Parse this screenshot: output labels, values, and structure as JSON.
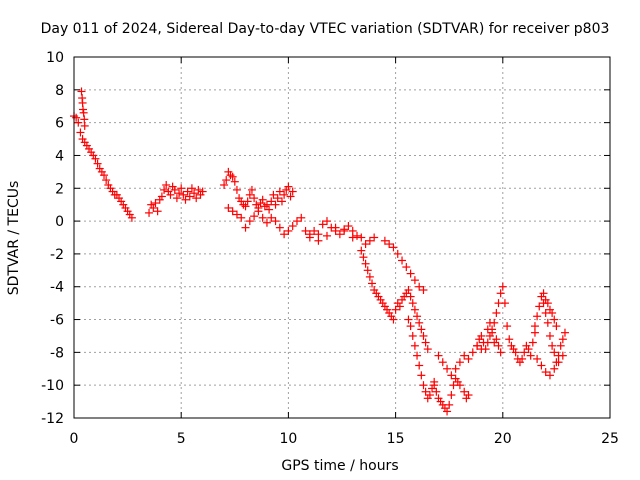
{
  "chart_data": {
    "type": "scatter",
    "title": "Day 011 of 2024, Sidereal Day-to-day VTEC variation (SDTVAR) for receiver p803",
    "xlabel": "GPS time / hours",
    "ylabel": "SDTVAR / TECUs",
    "xlim": [
      0,
      25
    ],
    "ylim": [
      -12,
      10
    ],
    "xticks": [
      0,
      5,
      10,
      15,
      20,
      25
    ],
    "yticks": [
      -12,
      -10,
      -8,
      -6,
      -4,
      -2,
      0,
      2,
      4,
      6,
      8,
      10
    ],
    "grid": true,
    "marker": "+",
    "color": "#ff0000",
    "series": [
      {
        "name": "SDTVAR",
        "x": [
          0.0,
          0.1,
          0.2,
          0.3,
          0.4,
          0.5,
          0.6,
          0.7,
          0.8,
          0.9,
          1.0,
          1.1,
          1.2,
          1.3,
          1.4,
          1.5,
          1.6,
          1.7,
          1.8,
          1.9,
          2.0,
          2.1,
          2.2,
          2.3,
          2.4,
          2.5,
          2.6,
          2.7,
          0.35,
          0.38,
          0.4,
          0.42,
          0.45,
          0.48,
          0.5,
          3.5,
          3.6,
          3.7,
          3.8,
          3.9,
          4.0,
          4.1,
          4.2,
          4.3,
          4.4,
          4.5,
          4.6,
          4.7,
          4.8,
          4.9,
          5.0,
          5.1,
          5.2,
          5.3,
          5.4,
          5.5,
          5.6,
          5.7,
          5.8,
          5.9,
          6.0,
          7.0,
          7.1,
          7.2,
          7.3,
          7.4,
          7.5,
          7.6,
          7.7,
          7.8,
          7.9,
          8.0,
          8.1,
          8.2,
          8.3,
          8.4,
          8.5,
          8.6,
          8.7,
          8.8,
          8.9,
          9.0,
          9.1,
          9.2,
          9.3,
          9.4,
          9.5,
          9.6,
          9.7,
          9.8,
          9.9,
          10.0,
          10.1,
          10.2,
          7.2,
          7.4,
          7.6,
          7.8,
          8.0,
          8.2,
          8.4,
          8.6,
          8.8,
          9.0,
          9.2,
          9.4,
          9.6,
          9.8,
          10.0,
          10.2,
          10.4,
          10.6,
          10.8,
          11.0,
          11.2,
          11.4,
          11.6,
          11.8,
          12.0,
          12.2,
          12.4,
          12.6,
          12.8,
          13.0,
          13.2,
          13.4,
          13.6,
          13.8,
          14.0,
          11.0,
          11.4,
          11.8,
          12.2,
          12.6,
          13.0,
          13.4,
          13.5,
          13.6,
          13.7,
          13.8,
          13.9,
          14.0,
          14.1,
          14.2,
          14.3,
          14.4,
          14.5,
          14.6,
          14.7,
          14.8,
          14.9,
          15.0,
          15.1,
          15.2,
          15.3,
          15.4,
          15.5,
          15.6,
          15.7,
          15.8,
          15.9,
          16.0,
          16.1,
          16.2,
          16.3,
          16.4,
          16.5,
          14.5,
          14.7,
          14.9,
          15.1,
          15.3,
          15.5,
          15.7,
          15.9,
          16.1,
          16.3,
          15.6,
          15.7,
          15.8,
          15.9,
          16.0,
          16.1,
          16.2,
          16.3,
          16.4,
          16.5,
          16.6,
          16.7,
          16.8,
          16.8,
          16.9,
          17.0,
          17.1,
          17.2,
          17.3,
          17.4,
          17.5,
          17.6,
          17.7,
          17.8,
          17.9,
          18.0,
          17.0,
          17.2,
          17.4,
          17.6,
          17.8,
          18.0,
          18.2,
          18.4,
          18.6,
          18.8,
          19.0,
          18.2,
          18.3,
          18.4,
          18.8,
          18.9,
          19.0,
          19.1,
          19.2,
          19.3,
          19.4,
          19.5,
          19.6,
          19.7,
          19.8,
          19.9,
          20.0,
          20.1,
          20.2,
          20.3,
          20.4,
          20.5,
          20.6,
          20.7,
          20.8,
          20.9,
          21.0,
          21.1,
          21.2,
          21.3,
          21.4,
          21.5,
          19.3,
          19.4,
          19.5,
          19.6,
          19.7,
          19.8,
          19.9,
          21.5,
          21.6,
          21.7,
          21.8,
          21.9,
          22.0,
          22.1,
          22.2,
          22.3,
          22.4,
          22.5,
          22.6,
          22.7,
          22.8,
          22.9,
          21.6,
          21.8,
          22.0,
          22.2,
          22.4,
          22.6,
          22.8,
          21.9,
          22.0,
          22.1,
          22.2,
          22.3,
          22.4,
          22.5
        ],
        "y": [
          6.4,
          6.3,
          6.0,
          5.4,
          5.0,
          4.8,
          4.6,
          4.4,
          4.2,
          4.0,
          3.8,
          3.5,
          3.2,
          3.0,
          2.8,
          2.5,
          2.2,
          2.0,
          1.8,
          1.6,
          1.6,
          1.4,
          1.2,
          1.0,
          0.8,
          0.6,
          0.4,
          0.2,
          7.9,
          7.5,
          7.2,
          6.8,
          6.6,
          6.2,
          5.8,
          0.5,
          1.0,
          0.8,
          1.1,
          0.6,
          1.3,
          1.5,
          1.9,
          2.2,
          1.8,
          1.6,
          2.1,
          1.9,
          1.4,
          1.7,
          2.0,
          1.6,
          1.3,
          1.8,
          1.5,
          2.0,
          1.7,
          1.4,
          1.9,
          1.6,
          1.8,
          2.2,
          2.5,
          3.0,
          2.8,
          2.7,
          2.4,
          1.9,
          1.4,
          1.2,
          1.0,
          0.9,
          1.2,
          1.6,
          1.9,
          1.4,
          1.0,
          0.8,
          1.1,
          1.3,
          0.9,
          1.0,
          0.7,
          1.2,
          1.6,
          1.0,
          1.4,
          1.8,
          1.2,
          1.6,
          1.9,
          2.1,
          1.5,
          1.8,
          0.8,
          0.6,
          0.4,
          0.2,
          -0.4,
          0.0,
          0.3,
          0.6,
          0.2,
          -0.1,
          0.2,
          0.0,
          -0.4,
          -0.8,
          -0.6,
          -0.3,
          0.0,
          0.2,
          -0.6,
          -1.0,
          -0.6,
          -0.8,
          -0.2,
          0.0,
          -0.4,
          -0.6,
          -0.8,
          -0.5,
          -0.3,
          -0.6,
          -0.9,
          -1.0,
          -1.4,
          -1.2,
          -1.0,
          -0.8,
          -1.2,
          -0.9,
          -0.4,
          -0.6,
          -1.0,
          -1.8,
          -2.2,
          -2.6,
          -3.0,
          -3.4,
          -3.8,
          -4.2,
          -4.4,
          -4.6,
          -4.8,
          -5.0,
          -5.2,
          -5.4,
          -5.6,
          -5.8,
          -6.0,
          -5.4,
          -5.0,
          -5.2,
          -4.8,
          -4.6,
          -4.4,
          -4.2,
          -4.6,
          -5.0,
          -5.4,
          -5.8,
          -6.2,
          -6.6,
          -7.0,
          -7.4,
          -7.8,
          -1.2,
          -1.4,
          -1.6,
          -2.0,
          -2.4,
          -2.8,
          -3.2,
          -3.6,
          -4.0,
          -4.2,
          -6.0,
          -6.4,
          -7.0,
          -7.6,
          -8.2,
          -8.8,
          -9.4,
          -10.0,
          -10.4,
          -10.8,
          -10.6,
          -10.2,
          -9.8,
          -10.0,
          -10.4,
          -10.8,
          -11.0,
          -11.2,
          -11.4,
          -11.6,
          -11.2,
          -10.6,
          -10.0,
          -9.6,
          -9.8,
          -10.0,
          -8.2,
          -8.6,
          -9.0,
          -9.4,
          -9.0,
          -8.6,
          -8.2,
          -8.4,
          -8.0,
          -7.6,
          -7.8,
          -10.4,
          -10.8,
          -10.6,
          -7.6,
          -7.2,
          -7.0,
          -7.4,
          -7.8,
          -7.4,
          -7.0,
          -6.6,
          -6.2,
          -5.6,
          -5.0,
          -4.4,
          -4.0,
          -5.0,
          -6.4,
          -7.2,
          -7.6,
          -7.8,
          -8.0,
          -8.4,
          -8.6,
          -8.4,
          -8.0,
          -7.6,
          -7.8,
          -8.2,
          -7.4,
          -6.8,
          -6.6,
          -6.2,
          -6.8,
          -7.4,
          -7.2,
          -7.6,
          -8.0,
          -6.4,
          -5.8,
          -5.2,
          -4.6,
          -5.0,
          -5.6,
          -6.2,
          -7.0,
          -7.6,
          -8.0,
          -8.6,
          -8.2,
          -7.6,
          -7.2,
          -6.8,
          -8.4,
          -8.8,
          -9.2,
          -9.4,
          -9.0,
          -8.6,
          -8.2,
          -4.4,
          -4.8,
          -5.0,
          -5.4,
          -5.6,
          -6.0,
          -6.4
        ]
      }
    ]
  }
}
